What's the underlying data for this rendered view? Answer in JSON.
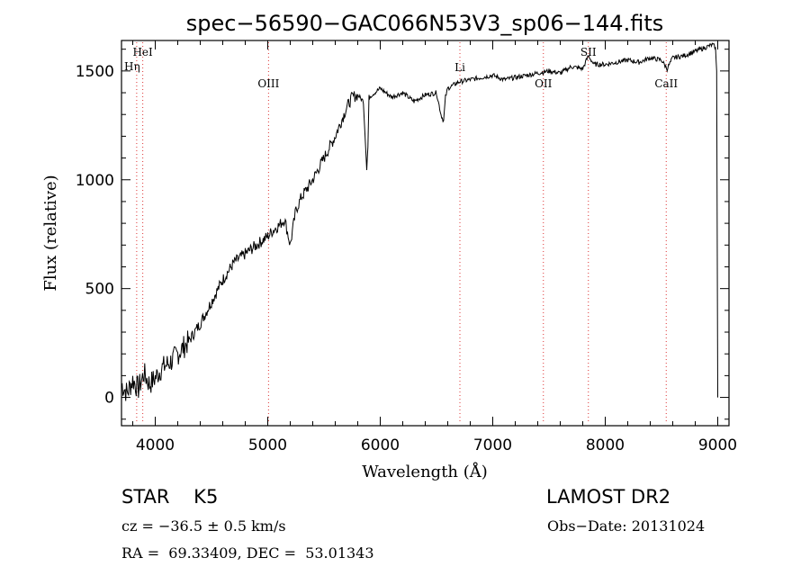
{
  "chart_data": {
    "type": "line",
    "title": "spec−56590−GAC066N53V3_sp06−144.fits",
    "xlabel": "Wavelength (Å)",
    "ylabel": "Flux (relative)",
    "xlim": [
      3700,
      9100
    ],
    "ylim": [
      -130,
      1640
    ],
    "xticks": [
      4000,
      5000,
      6000,
      7000,
      8000,
      9000
    ],
    "yticks": [
      0,
      500,
      1000,
      1500
    ],
    "grid": false,
    "series": [
      {
        "x": [
          3700,
          3750,
          3800,
          3850,
          3900,
          3950,
          4000,
          4050,
          4100,
          4150,
          4200,
          4300,
          4400,
          4500,
          4600,
          4700,
          4800,
          4900,
          5000,
          5050,
          5100,
          5150,
          5200,
          5250,
          5300,
          5400,
          5500,
          5600,
          5700,
          5750,
          5800,
          5850,
          5880,
          5890,
          5900,
          5950,
          6000,
          6100,
          6200,
          6300,
          6400,
          6500,
          6540,
          6563,
          6580,
          6600,
          6700,
          6800,
          6900,
          7000,
          7100,
          7200,
          7300,
          7400,
          7500,
          7600,
          7700,
          7800,
          7850,
          7900,
          8000,
          8100,
          8200,
          8300,
          8400,
          8500,
          8550,
          8600,
          8700,
          8800,
          8900,
          8950,
          8980,
          8990,
          9000
        ],
        "y": [
          60,
          20,
          80,
          40,
          110,
          60,
          90,
          130,
          150,
          170,
          200,
          260,
          340,
          440,
          540,
          620,
          660,
          700,
          740,
          770,
          790,
          820,
          700,
          860,
          920,
          1000,
          1100,
          1200,
          1330,
          1380,
          1390,
          1360,
          1050,
          1150,
          1380,
          1400,
          1420,
          1380,
          1400,
          1360,
          1390,
          1400,
          1300,
          1270,
          1380,
          1420,
          1450,
          1460,
          1470,
          1480,
          1460,
          1470,
          1480,
          1490,
          1500,
          1490,
          1520,
          1510,
          1570,
          1530,
          1530,
          1540,
          1550,
          1540,
          1560,
          1550,
          1510,
          1560,
          1570,
          1590,
          1610,
          1620,
          1610,
          1500,
          0
        ]
      }
    ],
    "lines": [
      {
        "name": "HeI",
        "x": 3889
      },
      {
        "name": "Hη",
        "x": 3835
      },
      {
        "name": "OIII",
        "x": 5007
      },
      {
        "name": "Li",
        "x": 6708
      },
      {
        "name": "OII",
        "x": 7450
      },
      {
        "name": "SII",
        "x": 7850
      },
      {
        "name": "CaII",
        "x": 8542
      }
    ]
  },
  "info": {
    "star_type": "STAR    K5",
    "survey": "LAMOST DR2",
    "cz": "cz = −36.5 ± 0.5 km/s",
    "obs_date": "Obs−Date: 20131024",
    "radec": "RA =  69.33409, DEC =  53.01343"
  }
}
